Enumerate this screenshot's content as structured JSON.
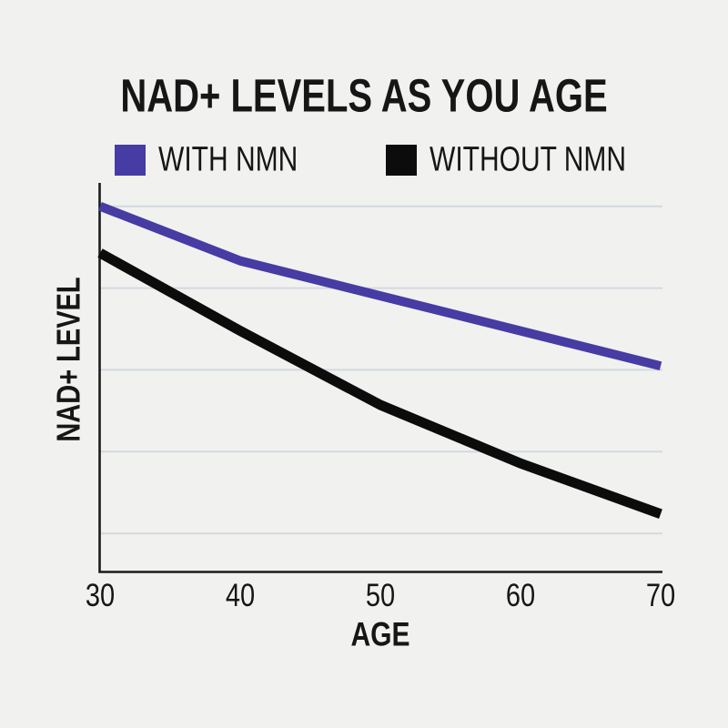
{
  "page": {
    "background_color": "#f1f1ef",
    "text_color": "#161616"
  },
  "chart_data": {
    "type": "line",
    "title": "NAD+ LEVELS AS YOU AGE",
    "xlabel": "AGE",
    "ylabel": "NAD+ LEVEL",
    "x": [
      30,
      40,
      50,
      60,
      70
    ],
    "x_tick_labels": [
      "30",
      "40",
      "50",
      "60",
      "70"
    ],
    "series": [
      {
        "name": "WITH NMN",
        "color": "#463ca3",
        "values": [
          94,
          80,
          71,
          62,
          53
        ]
      },
      {
        "name": "WITHOUT NMN",
        "color": "#0c0c0c",
        "values": [
          82,
          62,
          43,
          28,
          15
        ]
      }
    ],
    "ylim": [
      0,
      100
    ],
    "xlim": [
      30,
      70
    ],
    "y_tick_labels_shown": false,
    "grid": "horizontal",
    "gridline_values": [
      94,
      73,
      52,
      31,
      10
    ],
    "gridline_color": "#d5d8e1",
    "axis_color": "#1b1b1b",
    "legend_position": "top"
  }
}
